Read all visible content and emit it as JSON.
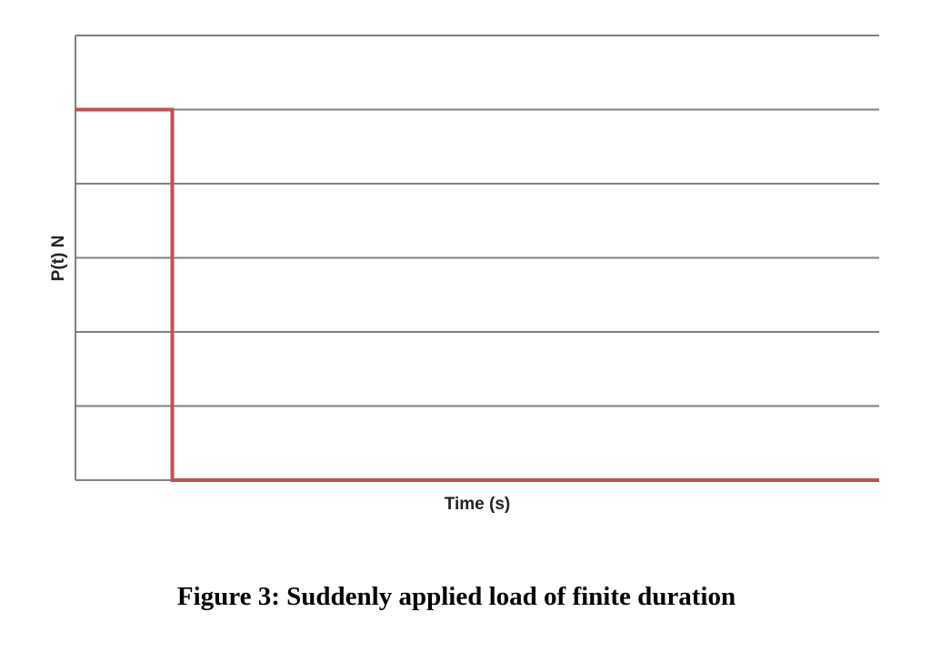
{
  "chart_data": {
    "type": "line",
    "title": "",
    "xlabel": "Time (s)",
    "ylabel": "P(t) N",
    "xlim": [
      0,
      8.3
    ],
    "ylim": [
      0,
      6
    ],
    "grid": true,
    "legend": "none",
    "series": [
      {
        "x": [
          0,
          1,
          1,
          8.3
        ],
        "y": [
          5,
          5,
          0,
          0
        ]
      }
    ],
    "colors": {
      "series": "#c0504d",
      "grid": "#7f7f7f"
    }
  },
  "caption": "Figure 3: Suddenly applied load of finite duration"
}
